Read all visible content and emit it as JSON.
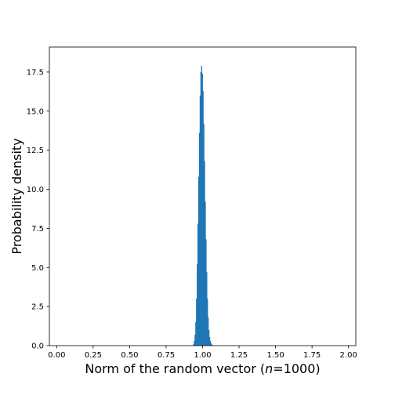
{
  "chart_data": {
    "type": "bar",
    "subtype": "histogram",
    "title": "",
    "xlabel": "Norm of the random vector (n=1000)",
    "xlabel_parts": {
      "prefix": "Norm of the random vector (",
      "var": "n",
      "suffix": "=1000)"
    },
    "ylabel": "Probability density",
    "xlim": [
      -0.05,
      2.05
    ],
    "ylim": [
      0,
      19.1
    ],
    "xticks": [
      0.0,
      0.25,
      0.5,
      0.75,
      1.0,
      1.25,
      1.5,
      1.75,
      2.0
    ],
    "xtick_labels": [
      "0.00",
      "0.25",
      "0.50",
      "0.75",
      "1.00",
      "1.25",
      "1.50",
      "1.75",
      "2.00"
    ],
    "yticks": [
      0.0,
      2.5,
      5.0,
      7.5,
      10.0,
      12.5,
      15.0,
      17.5
    ],
    "ytick_labels": [
      "0.0",
      "2.5",
      "5.0",
      "7.5",
      "10.0",
      "12.5",
      "15.0",
      "17.5"
    ],
    "bar_color": "#1f77b4",
    "grid": false,
    "legend": "none",
    "bin_width": 0.005,
    "bin_starts": [
      0.935,
      0.94,
      0.945,
      0.95,
      0.955,
      0.96,
      0.965,
      0.97,
      0.975,
      0.98,
      0.985,
      0.99,
      0.995,
      1.0,
      1.005,
      1.01,
      1.015,
      1.02,
      1.025,
      1.03,
      1.035,
      1.04,
      1.045,
      1.05,
      1.055,
      1.06,
      1.065
    ],
    "densities": [
      0.1,
      0.3,
      0.7,
      1.5,
      3.0,
      5.2,
      7.8,
      10.8,
      13.6,
      16.0,
      17.5,
      17.9,
      17.4,
      16.3,
      14.2,
      11.8,
      9.2,
      6.8,
      4.7,
      3.0,
      1.8,
      1.0,
      0.55,
      0.3,
      0.15,
      0.07,
      0.03
    ]
  }
}
